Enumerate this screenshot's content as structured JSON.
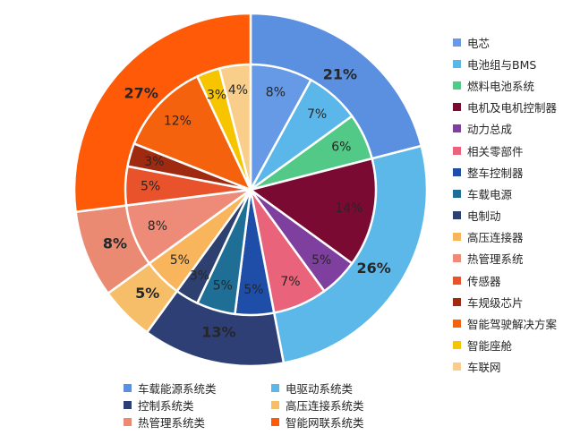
{
  "chart_data": {
    "type": "pie",
    "subtype": "nested-donut",
    "outer_ring": {
      "categories": [
        "车载能源系统类",
        "电驱动系统类",
        "控制系统类",
        "高压连接系统类",
        "热管理系统类",
        "智能网联系统类"
      ],
      "values": [
        21,
        26,
        13,
        5,
        8,
        27
      ],
      "labels": [
        "21%",
        "26%",
        "13%",
        "5%",
        "8%",
        "27%"
      ],
      "colors": [
        "#5B8FE0",
        "#5CB8E8",
        "#2E3F75",
        "#F7BE6A",
        "#EA8A73",
        "#FF5A08"
      ]
    },
    "inner_ring": {
      "categories": [
        "电芯",
        "电池组与BMS",
        "燃料电池系统",
        "电机及电机控制器",
        "动力总成",
        "相关零部件",
        "整车控制器",
        "车载电源",
        "电制动",
        "高压连接器",
        "热管理系统",
        "传感器",
        "车规级芯片",
        "智能驾驶解决方案",
        "智能座舱",
        "车联网"
      ],
      "values": [
        8,
        7,
        6,
        14,
        5,
        7,
        5,
        5,
        3,
        5,
        8,
        5,
        3,
        12,
        3,
        4
      ],
      "labels": [
        "8%",
        "7%",
        "6%",
        "14%",
        "5%",
        "7%",
        "5%",
        "5%",
        "3%",
        "5%",
        "8%",
        "5%",
        "3%",
        "12%",
        "3%",
        "4%"
      ],
      "colors": [
        "#6699E6",
        "#5BB7E9",
        "#52C986",
        "#7A0A32",
        "#7E3F9E",
        "#E9637A",
        "#1F4EA8",
        "#1E6E96",
        "#2E4070",
        "#F9B55C",
        "#EE8B78",
        "#E8532B",
        "#A02A10",
        "#F5620E",
        "#F7C500",
        "#F8CE8A"
      ]
    },
    "legend_right_order": [
      0,
      1,
      2,
      3,
      4,
      5,
      6,
      7,
      8,
      9,
      10,
      11,
      12,
      13,
      14,
      15
    ],
    "legend_bottom_order": [
      0,
      1,
      2,
      3,
      4,
      5
    ],
    "legend_right_placement": "right",
    "legend_bottom_placement": "bottom",
    "start_angle": "top",
    "direction": "clockwise"
  }
}
